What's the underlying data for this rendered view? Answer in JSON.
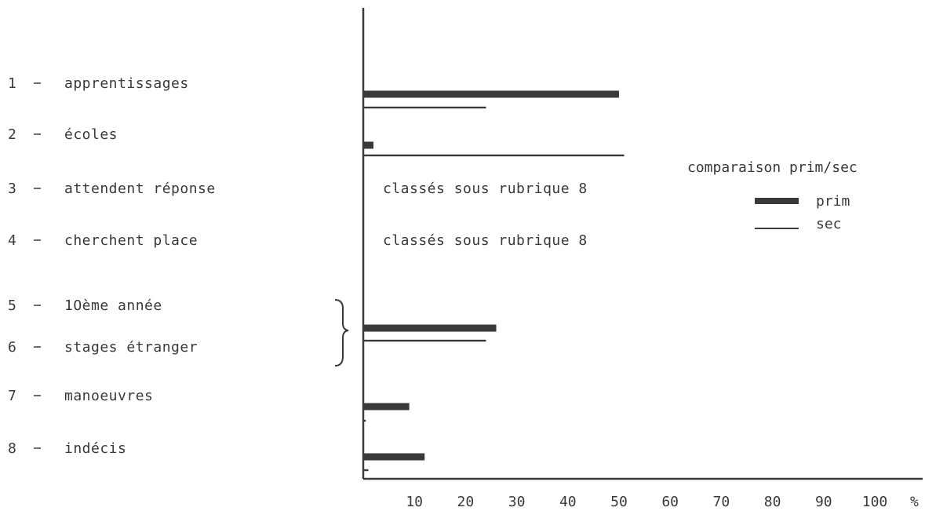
{
  "chart_data": {
    "type": "bar",
    "orientation": "horizontal",
    "title": "",
    "xlabel": "",
    "ylabel": "",
    "xlim": [
      0,
      100
    ],
    "unit": "%",
    "x_ticks": [
      10,
      20,
      30,
      40,
      50,
      60,
      70,
      80,
      90,
      100
    ],
    "categories": [
      {
        "num": "1",
        "label": "apprentissages"
      },
      {
        "num": "2",
        "label": "écoles"
      },
      {
        "num": "3",
        "label": "attendent réponse"
      },
      {
        "num": "4",
        "label": "cherchent place"
      },
      {
        "num": "5",
        "label": "1Oème année"
      },
      {
        "num": "6",
        "label": "stages étranger"
      },
      {
        "num": "7",
        "label": "manoeuvres"
      },
      {
        "num": "8",
        "label": "indécis"
      }
    ],
    "groups": [
      {
        "categories": [
          "1"
        ],
        "prim": 50,
        "sec": 24
      },
      {
        "categories": [
          "2"
        ],
        "prim": 2,
        "sec": 51
      },
      {
        "categories": [
          "3"
        ],
        "note": "classés sous rubrique 8"
      },
      {
        "categories": [
          "4"
        ],
        "note": "classés sous rubrique 8"
      },
      {
        "categories": [
          "5",
          "6"
        ],
        "prim": 26,
        "sec": 24
      },
      {
        "categories": [
          "7"
        ],
        "prim": 9,
        "sec": 0.5
      },
      {
        "categories": [
          "8"
        ],
        "prim": 12,
        "sec": 1
      }
    ],
    "series": [
      {
        "name": "prim",
        "style": "thick",
        "color": "#3a3a3a"
      },
      {
        "name": "sec",
        "style": "thin",
        "color": "#3a3a3a"
      }
    ],
    "legend": {
      "title": "comparaison prim/sec",
      "placement": "right"
    },
    "grid": false
  }
}
